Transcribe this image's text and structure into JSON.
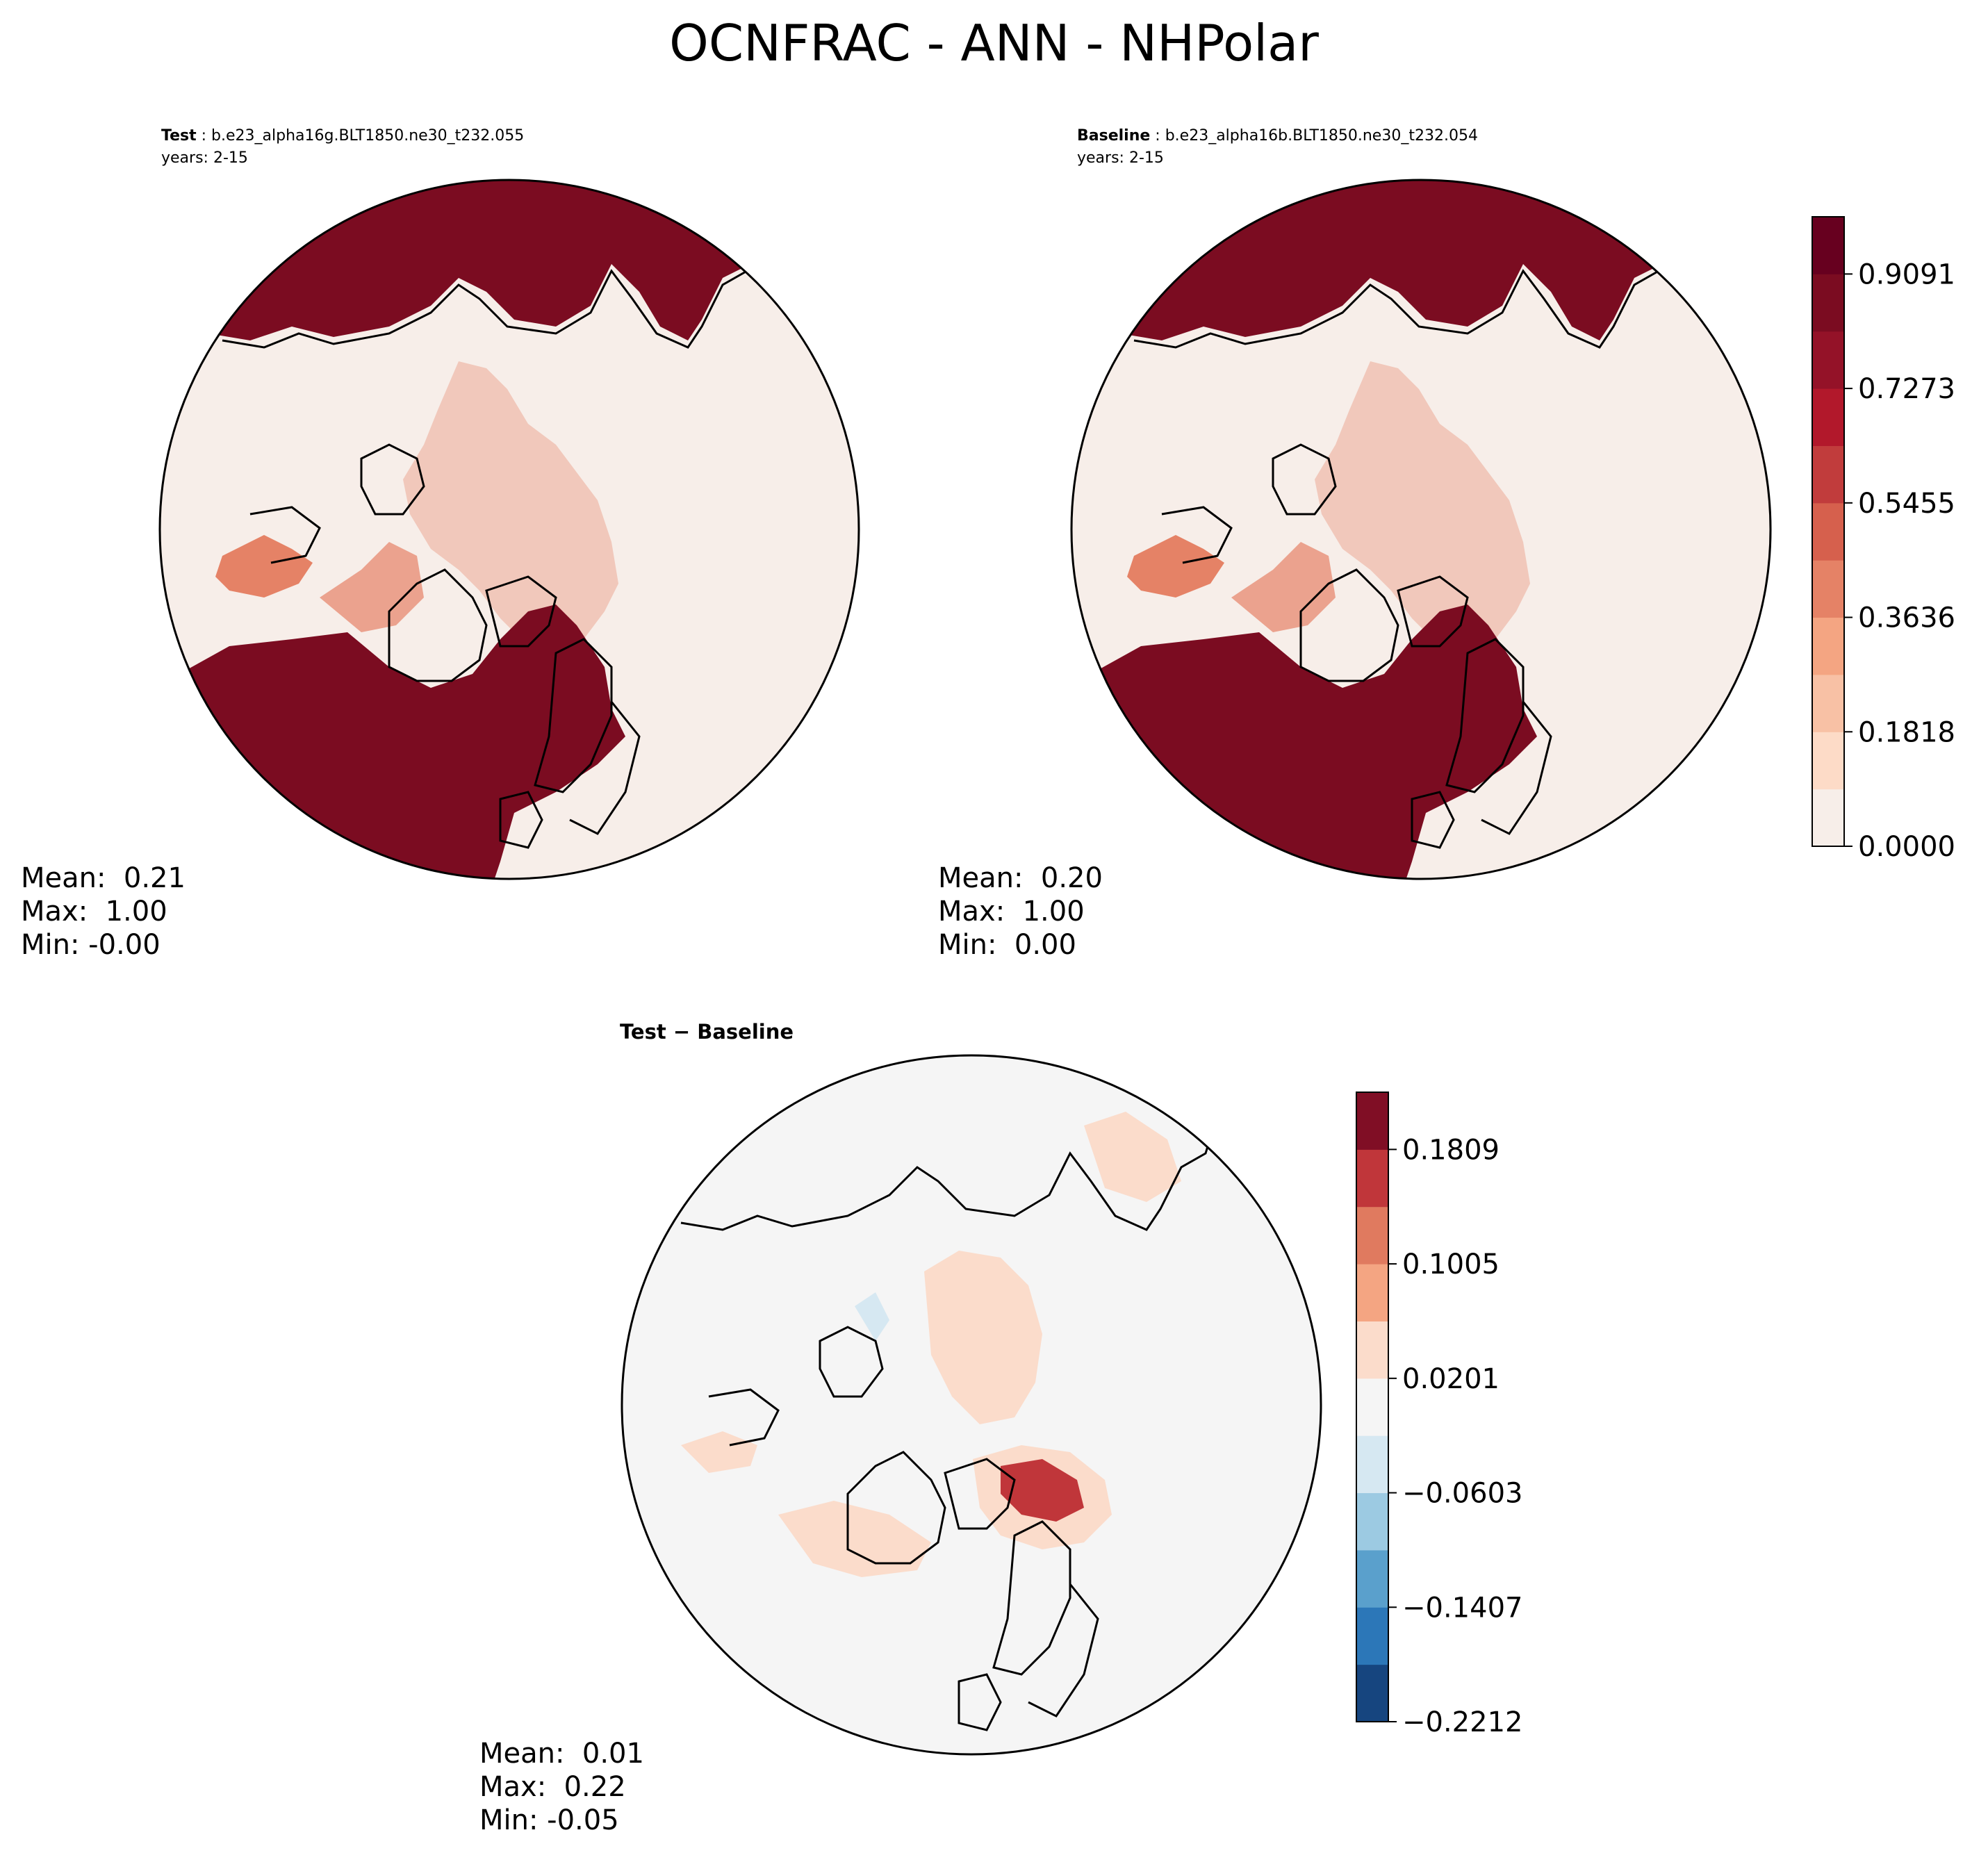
{
  "figure": {
    "title": "OCNFRAC - ANN - NHPolar"
  },
  "panels": {
    "test": {
      "label": "Test",
      "case": "b.e23_alpha16g.BLT1850.ne30_t232.055",
      "years": "years: 2-15",
      "stats": {
        "mean": "Mean:  0.21",
        "max": "Max:  1.00",
        "min": "Min: -0.00"
      }
    },
    "baseline": {
      "label": "Baseline",
      "case": "b.e23_alpha16b.BLT1850.ne30_t232.054",
      "years": "years: 2-15",
      "stats": {
        "mean": "Mean:  0.20",
        "max": "Max:  1.00",
        "min": "Min:  0.00"
      }
    },
    "diff": {
      "label": "Test − Baseline",
      "stats": {
        "mean": "Mean:  0.01",
        "max": "Max:  0.22",
        "min": "Min: -0.05"
      }
    }
  },
  "colorbars": {
    "main": {
      "ticks": [
        "0.9091",
        "0.7273",
        "0.5455",
        "0.3636",
        "0.1818",
        "0.0000"
      ],
      "colors": [
        "#f7eee9",
        "#fddbc7",
        "#f8c1a5",
        "#f4a582",
        "#e58266",
        "#d6604d",
        "#c13c3c",
        "#b2182b",
        "#941228",
        "#7b0c21",
        "#67001f"
      ]
    },
    "diff": {
      "ticks": [
        "0.1809",
        "0.1005",
        "0.0201",
        "−0.0603",
        "−0.1407",
        "−0.2212"
      ],
      "colors": [
        "#16457f",
        "#2c77b8",
        "#5aa0cc",
        "#9ccae2",
        "#d6e8f2",
        "#f5f5f5",
        "#fbdccb",
        "#f4a582",
        "#e07a5f",
        "#c0363a",
        "#800e25"
      ]
    }
  },
  "map_colors": {
    "land": "#f7eee9",
    "ocean_high": "#7b0c21",
    "ice_edge": "#e58266",
    "diff_background": "#f5f5f5",
    "diff_positive": "#fbdccb",
    "diff_strong": "#c0363a",
    "diff_negative": "#d6e8f2"
  }
}
